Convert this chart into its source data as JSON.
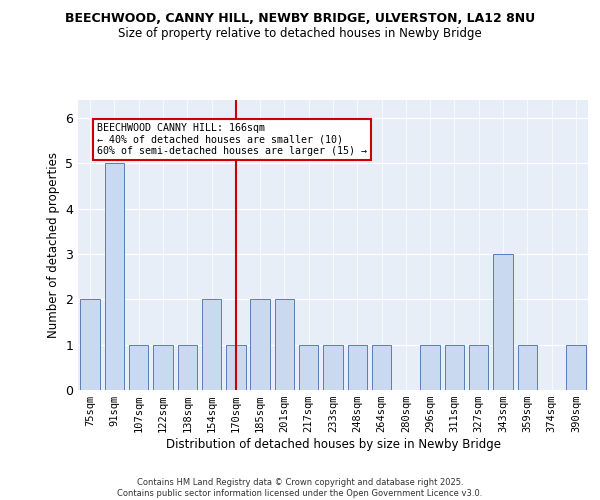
{
  "title": "BEECHWOOD, CANNY HILL, NEWBY BRIDGE, ULVERSTON, LA12 8NU",
  "subtitle": "Size of property relative to detached houses in Newby Bridge",
  "xlabel": "Distribution of detached houses by size in Newby Bridge",
  "ylabel": "Number of detached properties",
  "categories": [
    "75sqm",
    "91sqm",
    "107sqm",
    "122sqm",
    "138sqm",
    "154sqm",
    "170sqm",
    "185sqm",
    "201sqm",
    "217sqm",
    "233sqm",
    "248sqm",
    "264sqm",
    "280sqm",
    "296sqm",
    "311sqm",
    "327sqm",
    "343sqm",
    "359sqm",
    "374sqm",
    "390sqm"
  ],
  "values": [
    2,
    5,
    1,
    1,
    1,
    2,
    1,
    2,
    2,
    1,
    1,
    1,
    1,
    0,
    1,
    1,
    1,
    3,
    1,
    0,
    1
  ],
  "bar_color": "#c9d9f0",
  "bar_edge_color": "#5a7db5",
  "vline_index": 6,
  "vline_color": "#cc0000",
  "annotation_title": "BEECHWOOD CANNY HILL: 166sqm",
  "annotation_line1": "← 40% of detached houses are smaller (10)",
  "annotation_line2": "60% of semi-detached houses are larger (15) →",
  "annotation_box_color": "#cc0000",
  "ylim": [
    0,
    6.4
  ],
  "yticks": [
    0,
    1,
    2,
    3,
    4,
    5,
    6
  ],
  "bg_color": "#e8eef8",
  "footer1": "Contains HM Land Registry data © Crown copyright and database right 2025.",
  "footer2": "Contains public sector information licensed under the Open Government Licence v3.0."
}
